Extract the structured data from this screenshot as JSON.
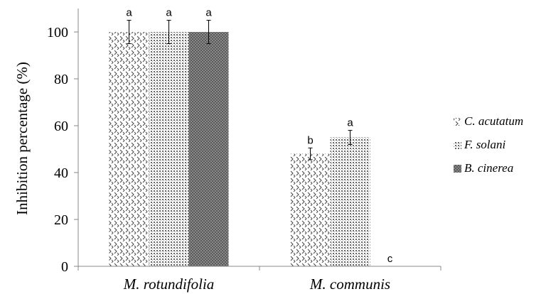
{
  "chart_data": {
    "type": "bar",
    "title": "",
    "xlabel": "",
    "ylabel": "Inhibition percentage (%)",
    "ylim": [
      0,
      110
    ],
    "yticks": [
      0,
      20,
      40,
      60,
      80,
      100
    ],
    "grid": false,
    "legend_position": "right",
    "categories": [
      "M. rotundifolia",
      "M. communis"
    ],
    "series": [
      {
        "name": "C. acutatum",
        "pattern": "zigzag",
        "values": [
          100,
          48
        ],
        "errors": [
          5,
          2.5
        ],
        "labels": [
          "a",
          "b"
        ]
      },
      {
        "name": "F. solani",
        "pattern": "dots",
        "values": [
          100,
          55
        ],
        "errors": [
          5,
          3
        ],
        "labels": [
          "a",
          "a"
        ]
      },
      {
        "name": "B. cinerea",
        "pattern": "crosshatch",
        "values": [
          100,
          0
        ],
        "errors": [
          5,
          0
        ],
        "labels": [
          "a",
          "c"
        ]
      }
    ]
  }
}
